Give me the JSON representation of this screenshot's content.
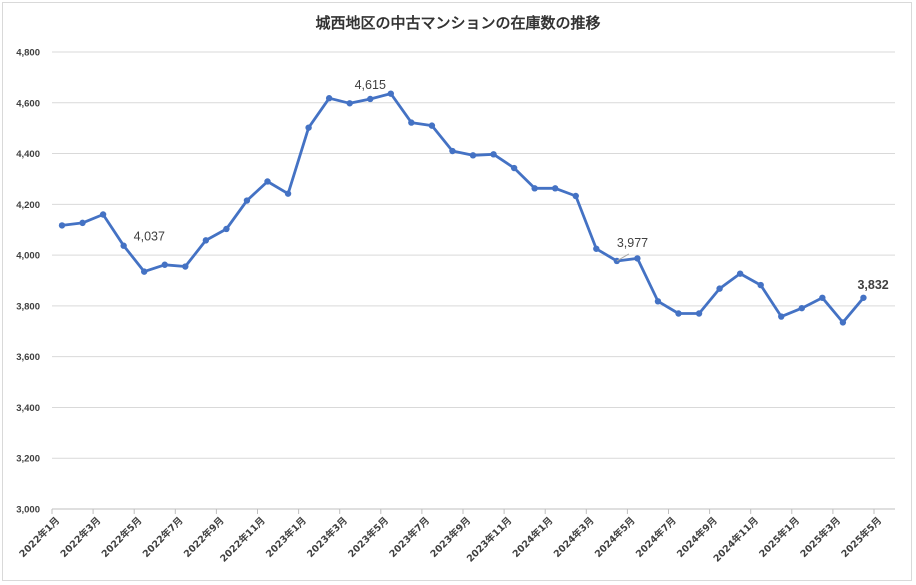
{
  "chart_data": {
    "type": "line",
    "title": "城西地区の中古マンションの在庫数の推移",
    "xlabel": "",
    "ylabel": "",
    "ylim": [
      3000,
      4800
    ],
    "yticks": [
      "3,000",
      "3,200",
      "3,400",
      "3,600",
      "3,800",
      "4,000",
      "4,200",
      "4,400",
      "4,600",
      "4,800"
    ],
    "grid": true,
    "legend": "none",
    "line_color": "#4472c4",
    "x_tick_labels": [
      "2022年1月",
      "2022年3月",
      "2022年5月",
      "2022年7月",
      "2022年9月",
      "2022年11月",
      "2023年1月",
      "2023年3月",
      "2023年5月",
      "2023年7月",
      "2023年9月",
      "2023年11月",
      "2024年1月",
      "2024年3月",
      "2024年5月",
      "2024年7月",
      "2024年9月",
      "2024年11月",
      "2025年1月",
      "2025年3月",
      "2025年5月"
    ],
    "categories": [
      "2022年1月",
      "2022年2月",
      "2022年3月",
      "2022年4月",
      "2022年5月",
      "2022年6月",
      "2022年7月",
      "2022年8月",
      "2022年9月",
      "2022年10月",
      "2022年11月",
      "2022年12月",
      "2023年1月",
      "2023年2月",
      "2023年3月",
      "2023年4月",
      "2023年5月",
      "2023年6月",
      "2023年7月",
      "2023年8月",
      "2023年9月",
      "2023年10月",
      "2023年11月",
      "2023年12月",
      "2024年1月",
      "2024年2月",
      "2024年3月",
      "2024年4月",
      "2024年5月",
      "2024年6月",
      "2024年7月",
      "2024年8月",
      "2024年9月",
      "2024年10月",
      "2024年11月",
      "2024年12月",
      "2025年1月",
      "2025年2月",
      "2025年3月",
      "2025年4月"
    ],
    "values": [
      4117,
      4127,
      4160,
      4037,
      3935,
      3962,
      3955,
      4058,
      4103,
      4215,
      4290,
      4242,
      4502,
      4618,
      4598,
      4615,
      4636,
      4522,
      4510,
      4410,
      4393,
      4397,
      4343,
      4263,
      4263,
      4233,
      4025,
      3977,
      3987,
      3818,
      3770,
      3770,
      3868,
      3927,
      3882,
      3758,
      3791,
      3832,
      3735,
      3832
    ],
    "annotations": [
      {
        "text": "4,037",
        "index": 3
      },
      {
        "text": "4,615",
        "index": 15
      },
      {
        "text": "3,977",
        "index": 27
      },
      {
        "text": "3,832",
        "index": 39
      }
    ]
  }
}
